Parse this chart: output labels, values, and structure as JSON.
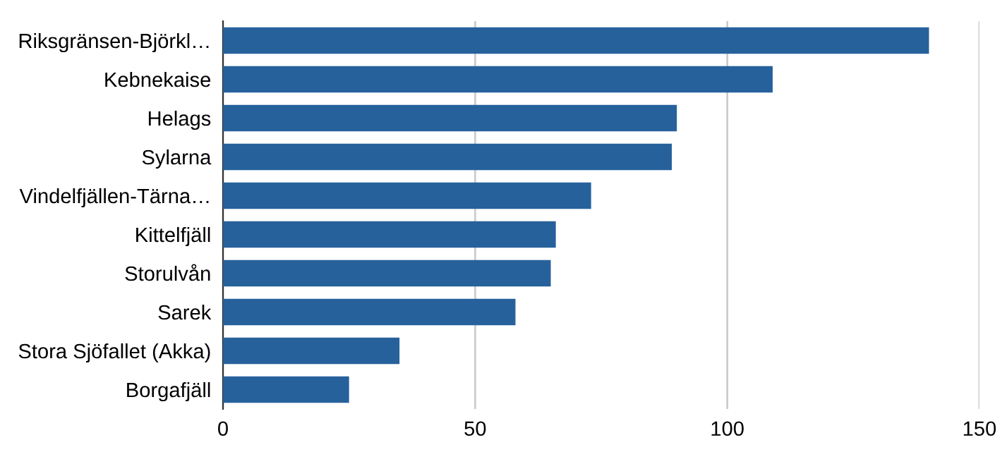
{
  "chart_data": {
    "type": "bar",
    "orientation": "horizontal",
    "categories": [
      "Riksgränsen-Björkl…",
      "Kebnekaise",
      "Helags",
      "Sylarna",
      "Vindelfjällen-Tärna…",
      "Kittelfjäll",
      "Storulvån",
      "Sarek",
      "Stora Sjöfallet (Akka)",
      "Borgafjäll"
    ],
    "values": [
      140,
      109,
      90,
      89,
      73,
      66,
      65,
      58,
      35,
      25
    ],
    "color": "#26619c",
    "xlim": [
      0,
      150
    ],
    "xticks": [
      0,
      50,
      100,
      150
    ],
    "grid": "x"
  }
}
